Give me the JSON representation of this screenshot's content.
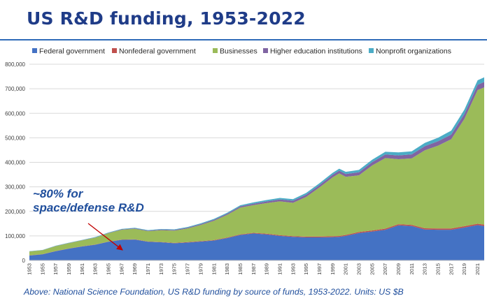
{
  "page": {
    "title": "US R&D funding, 1953-2022"
  },
  "annotation": {
    "line1": "~80% for",
    "line2": "space/defense R&D",
    "year": 1967,
    "arrow_color": "#c00000"
  },
  "caption": "Above: National Science Foundation, US R&D funding by source of funds, 1953-2022. Units: US $B",
  "chart_data": {
    "type": "area",
    "stacked": true,
    "legend_position": "top",
    "grid": true,
    "xlim": [
      1953,
      2022
    ],
    "ylim": [
      0,
      800000
    ],
    "yticks": [
      0,
      100000,
      200000,
      300000,
      400000,
      500000,
      600000,
      700000,
      800000
    ],
    "ytick_labels": [
      "0",
      "100,000",
      "200,000",
      "300,000",
      "400,000",
      "500,000",
      "600,000",
      "700,000",
      "800,000"
    ],
    "xtick_labels": [
      "1953",
      "1955",
      "1957",
      "1959",
      "1961",
      "1963",
      "1965",
      "1967",
      "1969",
      "1971",
      "1973",
      "1975",
      "1977",
      "1979",
      "1981",
      "1983",
      "1985",
      "1987",
      "1989",
      "1991",
      "1993",
      "1995",
      "1997",
      "1999",
      "2001",
      "2003",
      "2005",
      "2007",
      "2009",
      "2011",
      "2013",
      "2015",
      "2017",
      "2019",
      "2021"
    ],
    "x": [
      1953,
      1955,
      1957,
      1959,
      1961,
      1963,
      1965,
      1967,
      1969,
      1971,
      1973,
      1975,
      1977,
      1979,
      1981,
      1983,
      1985,
      1987,
      1989,
      1991,
      1993,
      1995,
      1997,
      1999,
      2000,
      2001,
      2003,
      2005,
      2007,
      2009,
      2011,
      2013,
      2015,
      2017,
      2019,
      2021,
      2022
    ],
    "series": [
      {
        "name": "Federal government",
        "color": "#4472c4",
        "values": [
          20000,
          25000,
          38000,
          48000,
          57000,
          64000,
          76000,
          84000,
          85000,
          76000,
          74000,
          70000,
          73000,
          77000,
          81000,
          91000,
          104000,
          110000,
          106000,
          100000,
          96000,
          94000,
          94000,
          95000,
          96000,
          100000,
          112000,
          118000,
          125000,
          143000,
          140000,
          126000,
          125000,
          125000,
          134000,
          144000,
          140000
        ]
      },
      {
        "name": "Nonfederal government",
        "color": "#c0504d",
        "values": [
          500,
          500,
          500,
          600,
          700,
          800,
          900,
          1000,
          1100,
          1200,
          1300,
          1400,
          1500,
          1600,
          1800,
          2000,
          2300,
          2500,
          2700,
          2900,
          3000,
          3200,
          3400,
          3600,
          3700,
          3800,
          4000,
          4200,
          4500,
          4800,
          4900,
          4900,
          5000,
          5200,
          5400,
          5600,
          5700
        ]
      },
      {
        "name": "Businesses",
        "color": "#9bbb59",
        "values": [
          16000,
          16000,
          20000,
          22000,
          24000,
          28000,
          34000,
          40000,
          43000,
          42000,
          48000,
          50000,
          56000,
          66000,
          79000,
          93000,
          109000,
          113000,
          125000,
          138000,
          136000,
          162000,
          200000,
          240000,
          255000,
          237000,
          231000,
          265000,
          288000,
          265000,
          271000,
          318000,
          338000,
          364000,
          438000,
          545000,
          560000
        ]
      },
      {
        "name": "Higher education institutions",
        "color": "#8064a2",
        "values": [
          300,
          400,
          500,
          600,
          800,
          1000,
          1300,
          1600,
          1900,
          2100,
          2400,
          2700,
          3000,
          3400,
          3900,
          4500,
          5200,
          6000,
          7000,
          7800,
          8400,
          9000,
          9700,
          10500,
          11000,
          11500,
          12500,
          13500,
          14500,
          15500,
          16500,
          17000,
          18000,
          19000,
          20000,
          21500,
          22000
        ]
      },
      {
        "name": "Nonprofit organizations",
        "color": "#4bacc6",
        "values": [
          800,
          900,
          1000,
          1100,
          1300,
          1500,
          1700,
          1900,
          2100,
          2300,
          2500,
          2700,
          3000,
          3300,
          3600,
          4000,
          4500,
          5000,
          5500,
          6000,
          6500,
          7000,
          7500,
          8000,
          8500,
          9000,
          9500,
          10000,
          11000,
          12000,
          12500,
          13500,
          14500,
          16000,
          17500,
          18500,
          19000
        ]
      }
    ]
  }
}
